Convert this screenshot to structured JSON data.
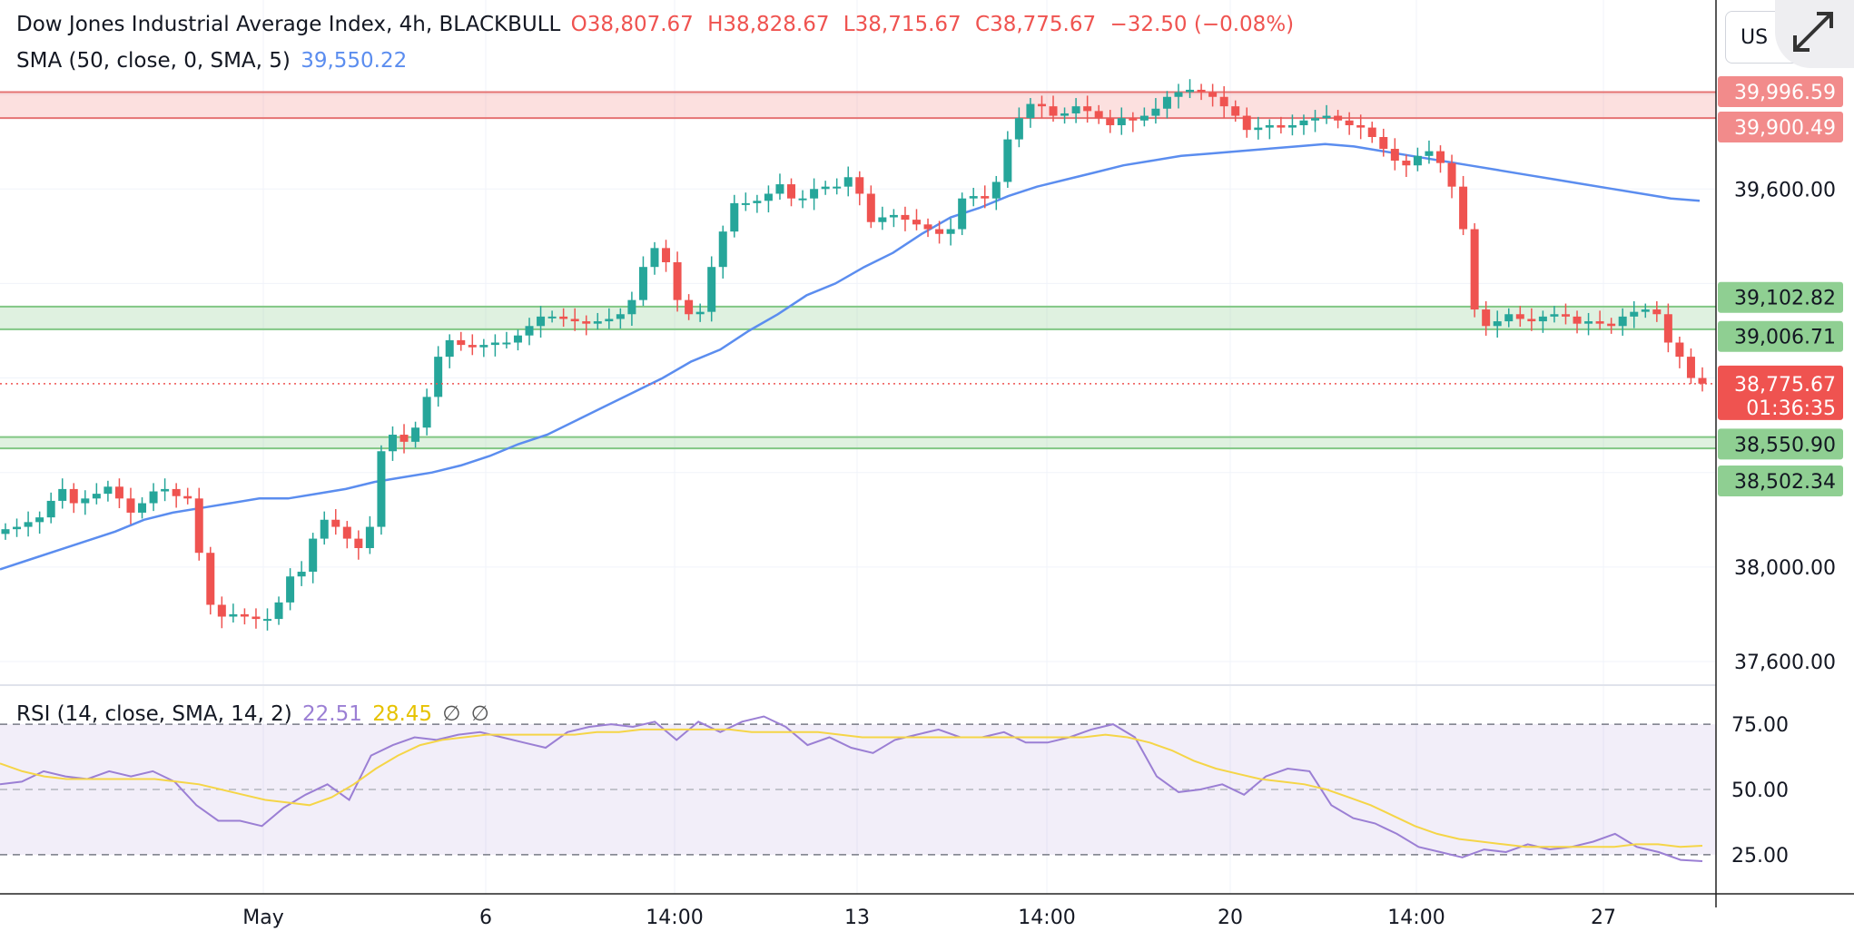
{
  "header": {
    "symbol": "Dow Jones Industrial Average Index, 4h, BLACKBULL",
    "o_label": "O",
    "o_value": "38,807.67",
    "h_label": "H",
    "h_value": "38,828.67",
    "l_label": "L",
    "l_value": "38,715.67",
    "c_label": "C",
    "c_value": "38,775.67",
    "change": "−32.50 (−0.08%)",
    "sma_label": "SMA (50, close, 0, SMA, 5)",
    "sma_value": "39,550.22",
    "rsi_label": "RSI (14, close, SMA, 14, 2)",
    "rsi_value": "22.51",
    "rsi_sma_value": "28.45",
    "null1": "∅",
    "null2": "∅"
  },
  "corner": {
    "currency_button": "US",
    "expand_icon": "expand-icon"
  },
  "colors": {
    "up": "#26a69a",
    "down": "#ef5350",
    "sma": "#5b8def",
    "rsi": "#9b7fd4",
    "rsi_sma": "#f5d547",
    "resistance": "#e57373",
    "support": "#81c784"
  },
  "chart_data": [
    {
      "type": "candlestick",
      "title": "Dow Jones Industrial Average Index, 4h, BLACKBULL",
      "x_tick_labels": [
        "May",
        "6",
        "14:00",
        "13",
        "14:00",
        "20",
        "14:00",
        "27"
      ],
      "y_tick_labels": [
        "39,600.00",
        "38,000.00",
        "37,600.00"
      ],
      "ylim": [
        37500,
        40400
      ],
      "price_levels": [
        {
          "label": "39,996.59",
          "value": 39996.59,
          "kind": "resistance"
        },
        {
          "label": "39,900.49",
          "value": 39900.49,
          "kind": "resistance"
        },
        {
          "label": "39,102.82",
          "value": 39102.82,
          "kind": "support"
        },
        {
          "label": "39,006.71",
          "value": 39006.71,
          "kind": "support"
        },
        {
          "label": "38,550.90",
          "value": 38550.9,
          "kind": "support"
        },
        {
          "label": "38,502.34",
          "value": 38502.34,
          "kind": "support"
        }
      ],
      "last_price": {
        "label": "38,775.67",
        "value": 38775.67,
        "countdown": "01:36:35"
      },
      "candles_close": [
        38160,
        38170,
        38190,
        38210,
        38280,
        38330,
        38270,
        38290,
        38310,
        38340,
        38290,
        38230,
        38270,
        38320,
        38330,
        38300,
        38290,
        38060,
        37840,
        37790,
        37800,
        37790,
        37780,
        37780,
        37850,
        37960,
        37980,
        38120,
        38200,
        38170,
        38120,
        38080,
        38170,
        38490,
        38560,
        38530,
        38590,
        38720,
        38890,
        38960,
        38940,
        38930,
        38940,
        38950,
        38950,
        38980,
        39020,
        39060,
        39060,
        39050,
        39040,
        39030,
        39040,
        39050,
        39070,
        39130,
        39270,
        39350,
        39290,
        39130,
        39070,
        39080,
        39270,
        39420,
        39540,
        39540,
        39550,
        39580,
        39620,
        39560,
        39560,
        39600,
        39610,
        39610,
        39650,
        39580,
        39460,
        39480,
        39490,
        39470,
        39450,
        39430,
        39410,
        39430,
        39560,
        39570,
        39560,
        39630,
        39810,
        39900,
        39960,
        39950,
        39910,
        39920,
        39950,
        39930,
        39900,
        39870,
        39900,
        39890,
        39910,
        39940,
        39990,
        40010,
        40020,
        40010,
        39990,
        39950,
        39910,
        39850,
        39860,
        39870,
        39860,
        39870,
        39890,
        39900,
        39910,
        39890,
        39870,
        39860,
        39820,
        39770,
        39720,
        39700,
        39740,
        39760,
        39710,
        39610,
        39430,
        39090,
        39020,
        39040,
        39070,
        39050,
        39040,
        39060,
        39070,
        39060,
        39030,
        39040,
        39030,
        39020,
        39060,
        39080,
        39090,
        39070,
        38950,
        38890,
        38800,
        38776
      ],
      "sma50": [
        37990,
        38030,
        38070,
        38110,
        38150,
        38200,
        38230,
        38250,
        38270,
        38290,
        38290,
        38310,
        38330,
        38360,
        38380,
        38400,
        38430,
        38470,
        38520,
        38560,
        38620,
        38680,
        38740,
        38800,
        38870,
        38920,
        39000,
        39070,
        39150,
        39200,
        39270,
        39330,
        39410,
        39480,
        39520,
        39570,
        39610,
        39640,
        39670,
        39700,
        39720,
        39740,
        39750,
        39760,
        39770,
        39780,
        39790,
        39780,
        39760,
        39740,
        39720,
        39700,
        39680,
        39660,
        39640,
        39620,
        39600,
        39580,
        39560,
        39550
      ],
      "rsi": [
        52,
        53,
        57,
        55,
        54,
        57,
        55,
        57,
        53,
        44,
        38,
        38,
        36,
        43,
        48,
        52,
        46,
        63,
        67,
        70,
        69,
        71,
        72,
        70,
        68,
        66,
        72,
        74,
        75,
        74,
        76,
        69,
        76,
        72,
        76,
        78,
        74,
        67,
        70,
        66,
        64,
        69,
        71,
        73,
        70,
        70,
        72,
        68,
        68,
        70,
        73,
        75,
        70,
        55,
        49,
        50,
        52,
        48,
        55,
        58,
        57,
        44,
        39,
        37,
        33,
        28,
        26,
        24,
        27,
        26,
        29,
        27,
        28,
        30,
        33,
        28,
        26,
        23,
        22.51
      ],
      "rsi_sma": [
        60,
        57,
        55,
        54,
        54,
        54,
        54,
        54,
        53,
        52,
        50,
        48,
        46,
        45,
        44,
        47,
        52,
        58,
        63,
        67,
        69,
        70,
        71,
        71,
        71,
        71,
        71,
        72,
        72,
        73,
        73,
        73,
        73,
        73,
        72,
        72,
        72,
        72,
        71,
        70,
        70,
        70,
        70,
        70,
        70,
        70,
        70,
        70,
        70,
        70,
        71,
        70,
        68,
        65,
        61,
        58,
        56,
        54,
        53,
        52,
        50,
        47,
        44,
        40,
        36,
        33,
        31,
        30,
        29,
        28,
        28,
        28,
        28,
        28,
        29,
        29,
        28,
        28.45
      ],
      "rsi_levels": [
        75,
        50,
        25
      ],
      "rsi_tick_labels": [
        "75.00",
        "50.00",
        "25.00"
      ],
      "rsi_ylim": [
        10,
        90
      ]
    }
  ]
}
